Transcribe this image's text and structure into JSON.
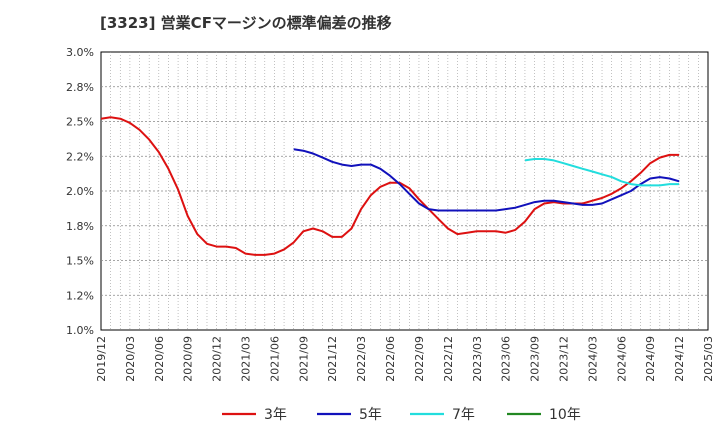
{
  "chart_data": {
    "type": "line",
    "title": "[3323]  営業CFマージンの標準偏差の推移",
    "xlabel": "",
    "ylabel": "",
    "ylim": [
      1.0,
      3.0
    ],
    "yticks": [
      "3.0%",
      "2.8%",
      "2.5%",
      "2.2%",
      "2.0%",
      "1.8%",
      "1.5%",
      "1.2%",
      "1.0%"
    ],
    "xticks": [
      "2019/12",
      "2020/03",
      "2020/06",
      "2020/09",
      "2020/12",
      "2021/03",
      "2021/06",
      "2021/09",
      "2021/12",
      "2022/03",
      "2022/06",
      "2022/09",
      "2022/12",
      "2023/03",
      "2023/06",
      "2023/09",
      "2023/12",
      "2024/03",
      "2024/06",
      "2024/09",
      "2024/12",
      "2025/03"
    ],
    "grid": true,
    "legend_position": "bottom",
    "series": [
      {
        "name": "3年",
        "color": "#dd1111",
        "points": [
          [
            "2019/12",
            2.52
          ],
          [
            "2020/01",
            2.53
          ],
          [
            "2020/02",
            2.52
          ],
          [
            "2020/03",
            2.49
          ],
          [
            "2020/04",
            2.44
          ],
          [
            "2020/05",
            2.37
          ],
          [
            "2020/06",
            2.28
          ],
          [
            "2020/07",
            2.16
          ],
          [
            "2020/08",
            2.01
          ],
          [
            "2020/09",
            1.82
          ],
          [
            "2020/10",
            1.69
          ],
          [
            "2020/11",
            1.62
          ],
          [
            "2020/12",
            1.6
          ],
          [
            "2021/01",
            1.6
          ],
          [
            "2021/02",
            1.59
          ],
          [
            "2021/03",
            1.55
          ],
          [
            "2021/04",
            1.54
          ],
          [
            "2021/05",
            1.54
          ],
          [
            "2021/06",
            1.55
          ],
          [
            "2021/07",
            1.58
          ],
          [
            "2021/08",
            1.63
          ],
          [
            "2021/09",
            1.71
          ],
          [
            "2021/10",
            1.73
          ],
          [
            "2021/11",
            1.71
          ],
          [
            "2021/12",
            1.67
          ],
          [
            "2022/01",
            1.67
          ],
          [
            "2022/02",
            1.73
          ],
          [
            "2022/03",
            1.87
          ],
          [
            "2022/04",
            1.97
          ],
          [
            "2022/05",
            2.03
          ],
          [
            "2022/06",
            2.06
          ],
          [
            "2022/07",
            2.06
          ],
          [
            "2022/08",
            2.02
          ],
          [
            "2022/09",
            1.94
          ],
          [
            "2022/10",
            1.87
          ],
          [
            "2022/11",
            1.8
          ],
          [
            "2022/12",
            1.73
          ],
          [
            "2023/01",
            1.69
          ],
          [
            "2023/02",
            1.7
          ],
          [
            "2023/03",
            1.71
          ],
          [
            "2023/04",
            1.71
          ],
          [
            "2023/05",
            1.71
          ],
          [
            "2023/06",
            1.7
          ],
          [
            "2023/07",
            1.72
          ],
          [
            "2023/08",
            1.78
          ],
          [
            "2023/09",
            1.87
          ],
          [
            "2023/10",
            1.91
          ],
          [
            "2023/11",
            1.92
          ],
          [
            "2023/12",
            1.91
          ],
          [
            "2024/01",
            1.91
          ],
          [
            "2024/02",
            1.91
          ],
          [
            "2024/03",
            1.93
          ],
          [
            "2024/04",
            1.95
          ],
          [
            "2024/05",
            1.98
          ],
          [
            "2024/06",
            2.02
          ],
          [
            "2024/07",
            2.07
          ],
          [
            "2024/08",
            2.13
          ],
          [
            "2024/09",
            2.2
          ],
          [
            "2024/10",
            2.24
          ],
          [
            "2024/11",
            2.26
          ],
          [
            "2024/12",
            2.26
          ]
        ]
      },
      {
        "name": "5年",
        "color": "#1111bb",
        "points": [
          [
            "2021/08",
            2.3
          ],
          [
            "2021/09",
            2.29
          ],
          [
            "2021/10",
            2.27
          ],
          [
            "2021/11",
            2.24
          ],
          [
            "2021/12",
            2.21
          ],
          [
            "2022/01",
            2.19
          ],
          [
            "2022/02",
            2.18
          ],
          [
            "2022/03",
            2.19
          ],
          [
            "2022/04",
            2.19
          ],
          [
            "2022/05",
            2.16
          ],
          [
            "2022/06",
            2.11
          ],
          [
            "2022/07",
            2.05
          ],
          [
            "2022/08",
            1.98
          ],
          [
            "2022/09",
            1.91
          ],
          [
            "2022/10",
            1.87
          ],
          [
            "2022/11",
            1.86
          ],
          [
            "2022/12",
            1.86
          ],
          [
            "2023/01",
            1.86
          ],
          [
            "2023/02",
            1.86
          ],
          [
            "2023/03",
            1.86
          ],
          [
            "2023/04",
            1.86
          ],
          [
            "2023/05",
            1.86
          ],
          [
            "2023/06",
            1.87
          ],
          [
            "2023/07",
            1.88
          ],
          [
            "2023/08",
            1.9
          ],
          [
            "2023/09",
            1.92
          ],
          [
            "2023/10",
            1.93
          ],
          [
            "2023/11",
            1.93
          ],
          [
            "2023/12",
            1.92
          ],
          [
            "2024/01",
            1.91
          ],
          [
            "2024/02",
            1.9
          ],
          [
            "2024/03",
            1.9
          ],
          [
            "2024/04",
            1.91
          ],
          [
            "2024/05",
            1.94
          ],
          [
            "2024/06",
            1.97
          ],
          [
            "2024/07",
            2.0
          ],
          [
            "2024/08",
            2.05
          ],
          [
            "2024/09",
            2.09
          ],
          [
            "2024/10",
            2.1
          ],
          [
            "2024/11",
            2.09
          ],
          [
            "2024/12",
            2.07
          ]
        ]
      },
      {
        "name": "7年",
        "color": "#22dddd",
        "points": [
          [
            "2023/08",
            2.22
          ],
          [
            "2023/09",
            2.23
          ],
          [
            "2023/10",
            2.23
          ],
          [
            "2023/11",
            2.22
          ],
          [
            "2023/12",
            2.2
          ],
          [
            "2024/01",
            2.18
          ],
          [
            "2024/02",
            2.16
          ],
          [
            "2024/03",
            2.14
          ],
          [
            "2024/04",
            2.12
          ],
          [
            "2024/05",
            2.1
          ],
          [
            "2024/06",
            2.07
          ],
          [
            "2024/07",
            2.05
          ],
          [
            "2024/08",
            2.04
          ],
          [
            "2024/09",
            2.04
          ],
          [
            "2024/10",
            2.04
          ],
          [
            "2024/11",
            2.05
          ],
          [
            "2024/12",
            2.05
          ]
        ]
      },
      {
        "name": "10年",
        "color": "#228822",
        "points": []
      }
    ]
  }
}
